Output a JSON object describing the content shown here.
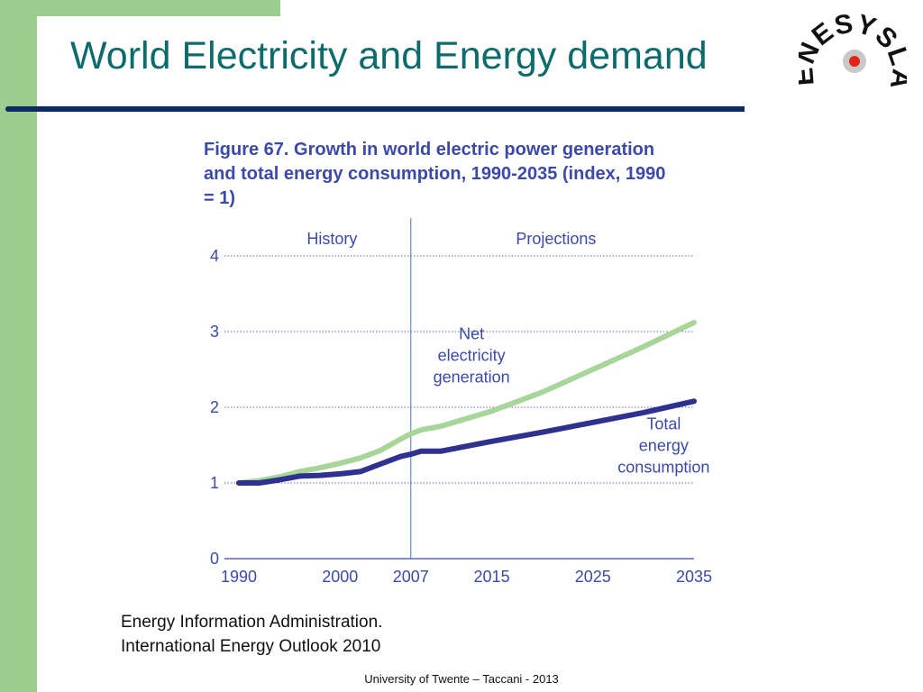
{
  "slide": {
    "title": "World Electricity and Energy demand",
    "logo_text": "ENESYSLAB",
    "source_line1": "Energy Information Administration.",
    "source_line2": "International Energy Outlook 2010",
    "footer": "University of Twente – Taccani - 2013"
  },
  "colors": {
    "green_band": "#9ccf8f",
    "title_text": "#0d6b6b",
    "title_rule": "#0b2a66",
    "figure_text": "#3b4aa8",
    "electricity_line": "#a8d69a",
    "energy_line": "#2e3190"
  },
  "chart_data": {
    "type": "line",
    "title": "Figure 67.  Growth in world electric power generation and total energy consumption, 1990-2035 (index, 1990 = 1)",
    "xlabel": "",
    "ylabel": "",
    "x_ticks": [
      "1990",
      "2000",
      "2007",
      "2015",
      "2025",
      "2035"
    ],
    "y_ticks": [
      "0",
      "1",
      "2",
      "3",
      "4"
    ],
    "xlim": [
      1990,
      2035
    ],
    "ylim": [
      0,
      4
    ],
    "grid": "horizontal dotted",
    "divider_year": 2007,
    "region_labels": [
      "History",
      "Projections"
    ],
    "series": [
      {
        "name": "Net electricity generation",
        "x": [
          1990,
          1992,
          1994,
          1996,
          1998,
          2000,
          2002,
          2004,
          2006,
          2007,
          2008,
          2010,
          2015,
          2020,
          2025,
          2030,
          2035
        ],
        "values": [
          1.0,
          1.03,
          1.08,
          1.15,
          1.2,
          1.26,
          1.33,
          1.43,
          1.58,
          1.65,
          1.7,
          1.75,
          1.95,
          2.2,
          2.5,
          2.8,
          3.12
        ]
      },
      {
        "name": "Total energy consumption",
        "x": [
          1990,
          1992,
          1994,
          1996,
          1998,
          2000,
          2002,
          2004,
          2006,
          2007,
          2008,
          2010,
          2015,
          2020,
          2025,
          2030,
          2035
        ],
        "values": [
          1.0,
          1.0,
          1.04,
          1.09,
          1.1,
          1.12,
          1.15,
          1.25,
          1.35,
          1.38,
          1.42,
          1.42,
          1.55,
          1.67,
          1.8,
          1.93,
          2.08
        ]
      }
    ]
  }
}
